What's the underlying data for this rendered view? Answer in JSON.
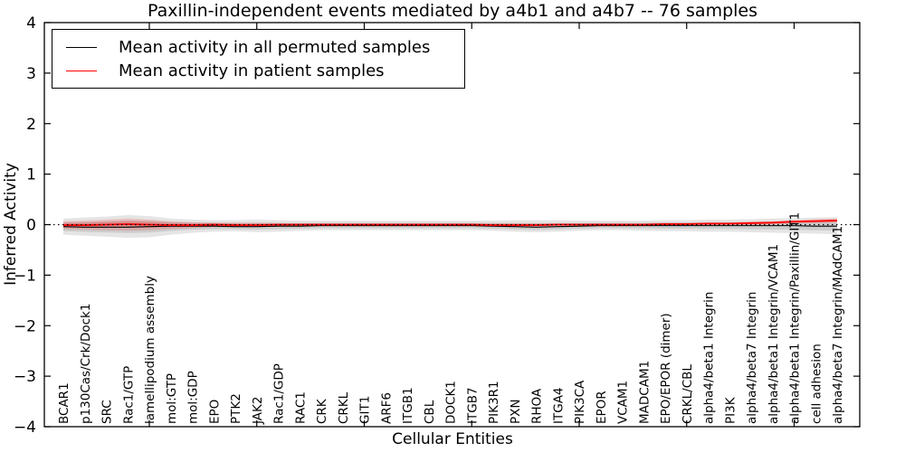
{
  "figure": {
    "title": "Paxillin-independent events mediated by a4b1 and a4b7 -- 76 samples",
    "xlabel": "Cellular Entities",
    "ylabel": "Inferred Activity"
  },
  "legend": {
    "items": [
      {
        "label": "Mean activity in all permuted samples",
        "color": "#000000"
      },
      {
        "label": "Mean activity in patient samples",
        "color": "#ff0000"
      }
    ]
  },
  "chart_data": {
    "type": "line",
    "title": "Paxillin-independent events mediated by a4b1 and a4b7 -- 76 samples",
    "xlabel": "Cellular Entities",
    "ylabel": "Inferred Activity",
    "ylim": [
      -4,
      4
    ],
    "yticks": [
      -4,
      -3,
      -2,
      -1,
      0,
      1,
      2,
      3,
      4
    ],
    "x_major_ticks": [
      5,
      10,
      15,
      20,
      25,
      30,
      35
    ],
    "grid": false,
    "zero_line": true,
    "legend_position": "upper left",
    "categories": [
      "BCAR1",
      "p130Cas/Crk/Dock1",
      "SRC",
      "Rac1/GTP",
      "lamellipodium assembly",
      "mol:GTP",
      "mol:GDP",
      "EPO",
      "PTK2",
      "JAK2",
      "Rac1/GDP",
      "RAC1",
      "CRK",
      "CRKL",
      "GIT1",
      "ARF6",
      "ITGB1",
      "CBL",
      "DOCK1",
      "ITGB7",
      "PIK3R1",
      "PXN",
      "RHOA",
      "ITGA4",
      "PIK3CA",
      "EPOR",
      "VCAM1",
      "MADCAM1",
      "EPO/EPOR (dimer)",
      "CRKL/CBL",
      "alpha4/beta1 Integrin",
      "PI3K",
      "alpha4/beta7 Integrin",
      "alpha4/beta1 Integrin/VCAM1",
      "alpha4/beta1 Integrin/Paxillin/GIT1",
      "cell adhesion",
      "alpha4/beta7 Integrin/MAdCAM1"
    ],
    "series": [
      {
        "name": "Mean activity in all permuted samples",
        "color": "#000000",
        "values": [
          -0.04,
          -0.05,
          -0.05,
          -0.05,
          -0.04,
          -0.03,
          -0.03,
          -0.03,
          -0.04,
          -0.04,
          -0.03,
          -0.03,
          -0.02,
          -0.02,
          -0.02,
          -0.02,
          -0.02,
          -0.02,
          -0.02,
          -0.02,
          -0.03,
          -0.04,
          -0.05,
          -0.04,
          -0.03,
          -0.02,
          -0.02,
          -0.02,
          -0.02,
          -0.02,
          -0.02,
          -0.02,
          -0.02,
          -0.02,
          -0.02,
          -0.03,
          -0.03
        ]
      },
      {
        "name": "Mean activity in patient samples",
        "color": "#ff0000",
        "values": [
          -0.01,
          -0.01,
          0.0,
          0.01,
          0.0,
          -0.01,
          -0.01,
          0.0,
          -0.01,
          -0.01,
          0.0,
          0.0,
          0.0,
          0.0,
          0.0,
          0.0,
          0.0,
          0.0,
          0.0,
          0.0,
          -0.01,
          -0.01,
          -0.01,
          0.0,
          0.0,
          0.0,
          0.0,
          0.0,
          0.01,
          0.01,
          0.02,
          0.02,
          0.03,
          0.04,
          0.06,
          0.07,
          0.08
        ]
      }
    ],
    "bands": [
      {
        "name": "permuted-samples-range",
        "series": "Mean activity in all permuted samples",
        "color": "#000000",
        "opacity": 0.1,
        "upper": [
          0.12,
          0.14,
          0.16,
          0.19,
          0.17,
          0.12,
          0.1,
          0.09,
          0.09,
          0.1,
          0.09,
          0.08,
          0.08,
          0.08,
          0.08,
          0.08,
          0.08,
          0.08,
          0.08,
          0.08,
          0.08,
          0.09,
          0.09,
          0.09,
          0.08,
          0.08,
          0.08,
          0.08,
          0.09,
          0.09,
          0.1,
          0.1,
          0.11,
          0.12,
          0.13,
          0.14,
          0.15
        ],
        "lower": [
          -0.2,
          -0.22,
          -0.24,
          -0.26,
          -0.25,
          -0.2,
          -0.16,
          -0.14,
          -0.13,
          -0.15,
          -0.14,
          -0.12,
          -0.11,
          -0.11,
          -0.11,
          -0.11,
          -0.11,
          -0.11,
          -0.11,
          -0.11,
          -0.12,
          -0.14,
          -0.15,
          -0.14,
          -0.12,
          -0.11,
          -0.11,
          -0.12,
          -0.13,
          -0.13,
          -0.14,
          -0.14,
          -0.15,
          -0.16,
          -0.17,
          -0.18,
          -0.19
        ]
      },
      {
        "name": "patient-samples-range",
        "series": "Mean activity in patient samples",
        "color": "#ff0000",
        "opacity": 0.16,
        "upper": [
          0.07,
          0.08,
          0.1,
          0.12,
          0.1,
          0.07,
          0.05,
          0.04,
          0.04,
          0.04,
          0.03,
          0.03,
          0.03,
          0.03,
          0.03,
          0.03,
          0.03,
          0.03,
          0.03,
          0.03,
          0.03,
          0.03,
          0.03,
          0.03,
          0.03,
          0.03,
          0.03,
          0.03,
          0.04,
          0.04,
          0.05,
          0.05,
          0.06,
          0.07,
          0.09,
          0.11,
          0.12
        ],
        "lower": [
          -0.09,
          -0.1,
          -0.11,
          -0.12,
          -0.11,
          -0.09,
          -0.07,
          -0.05,
          -0.05,
          -0.05,
          -0.04,
          -0.03,
          -0.03,
          -0.03,
          -0.03,
          -0.03,
          -0.03,
          -0.03,
          -0.03,
          -0.03,
          -0.04,
          -0.04,
          -0.04,
          -0.03,
          -0.03,
          -0.03,
          -0.03,
          -0.03,
          -0.02,
          -0.02,
          -0.02,
          -0.01,
          -0.01,
          0.0,
          0.02,
          0.03,
          0.04
        ]
      }
    ]
  }
}
